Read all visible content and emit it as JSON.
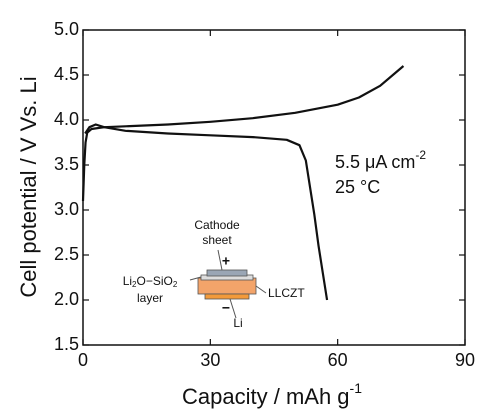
{
  "chart_data": {
    "type": "line",
    "xlabel": {
      "text": "Capacity / mAh g",
      "sup": "-1"
    },
    "ylabel": "Cell potential / V Vs. Li",
    "xlim": [
      0,
      90
    ],
    "xticks": [
      0,
      30,
      60,
      90
    ],
    "ylim": [
      1.5,
      5.0
    ],
    "yticks": [
      {
        "value": 1.5,
        "label": "1.5"
      },
      {
        "value": 2.0,
        "label": "2.0"
      },
      {
        "value": 2.5,
        "label": "2.5"
      },
      {
        "value": 3.0,
        "label": "3.0"
      },
      {
        "value": 3.5,
        "label": "3.5"
      },
      {
        "value": 4.0,
        "label": "4.0"
      },
      {
        "value": 4.5,
        "label": "4.5"
      },
      {
        "value": 5.0,
        "label": "5.0"
      }
    ],
    "grid": false,
    "series": [
      {
        "color": "#111111",
        "x": [
          0,
          0.3,
          0.6,
          1,
          2,
          5,
          10,
          20,
          30,
          40,
          50,
          60,
          65,
          70,
          75.5
        ],
        "values": [
          3.1,
          3.5,
          3.75,
          3.86,
          3.9,
          3.92,
          3.93,
          3.95,
          3.98,
          4.02,
          4.08,
          4.17,
          4.25,
          4.38,
          4.6
        ]
      },
      {
        "color": "#111111",
        "x": [
          0.5,
          1.5,
          3,
          5,
          10,
          20,
          30,
          40,
          48,
          51,
          52.5,
          53.5,
          54.5,
          55.5,
          56.5,
          57.5
        ],
        "values": [
          3.85,
          3.92,
          3.95,
          3.92,
          3.88,
          3.85,
          3.83,
          3.81,
          3.78,
          3.72,
          3.55,
          3.25,
          2.95,
          2.6,
          2.3,
          2.0
        ]
      }
    ],
    "annotations": {
      "current": {
        "text": "5.5 μA cm",
        "sup": "-2"
      },
      "temperature": "25 °C"
    },
    "inset": {
      "cathode": [
        "Cathode",
        "sheet"
      ],
      "plus": "+",
      "layer": {
        "a": "Li",
        "b": "2",
        "c": "O−SiO",
        "d": "2",
        "e": "layer"
      },
      "electrolyte": "LLCZT",
      "minus": "−",
      "anode": "Li"
    }
  }
}
